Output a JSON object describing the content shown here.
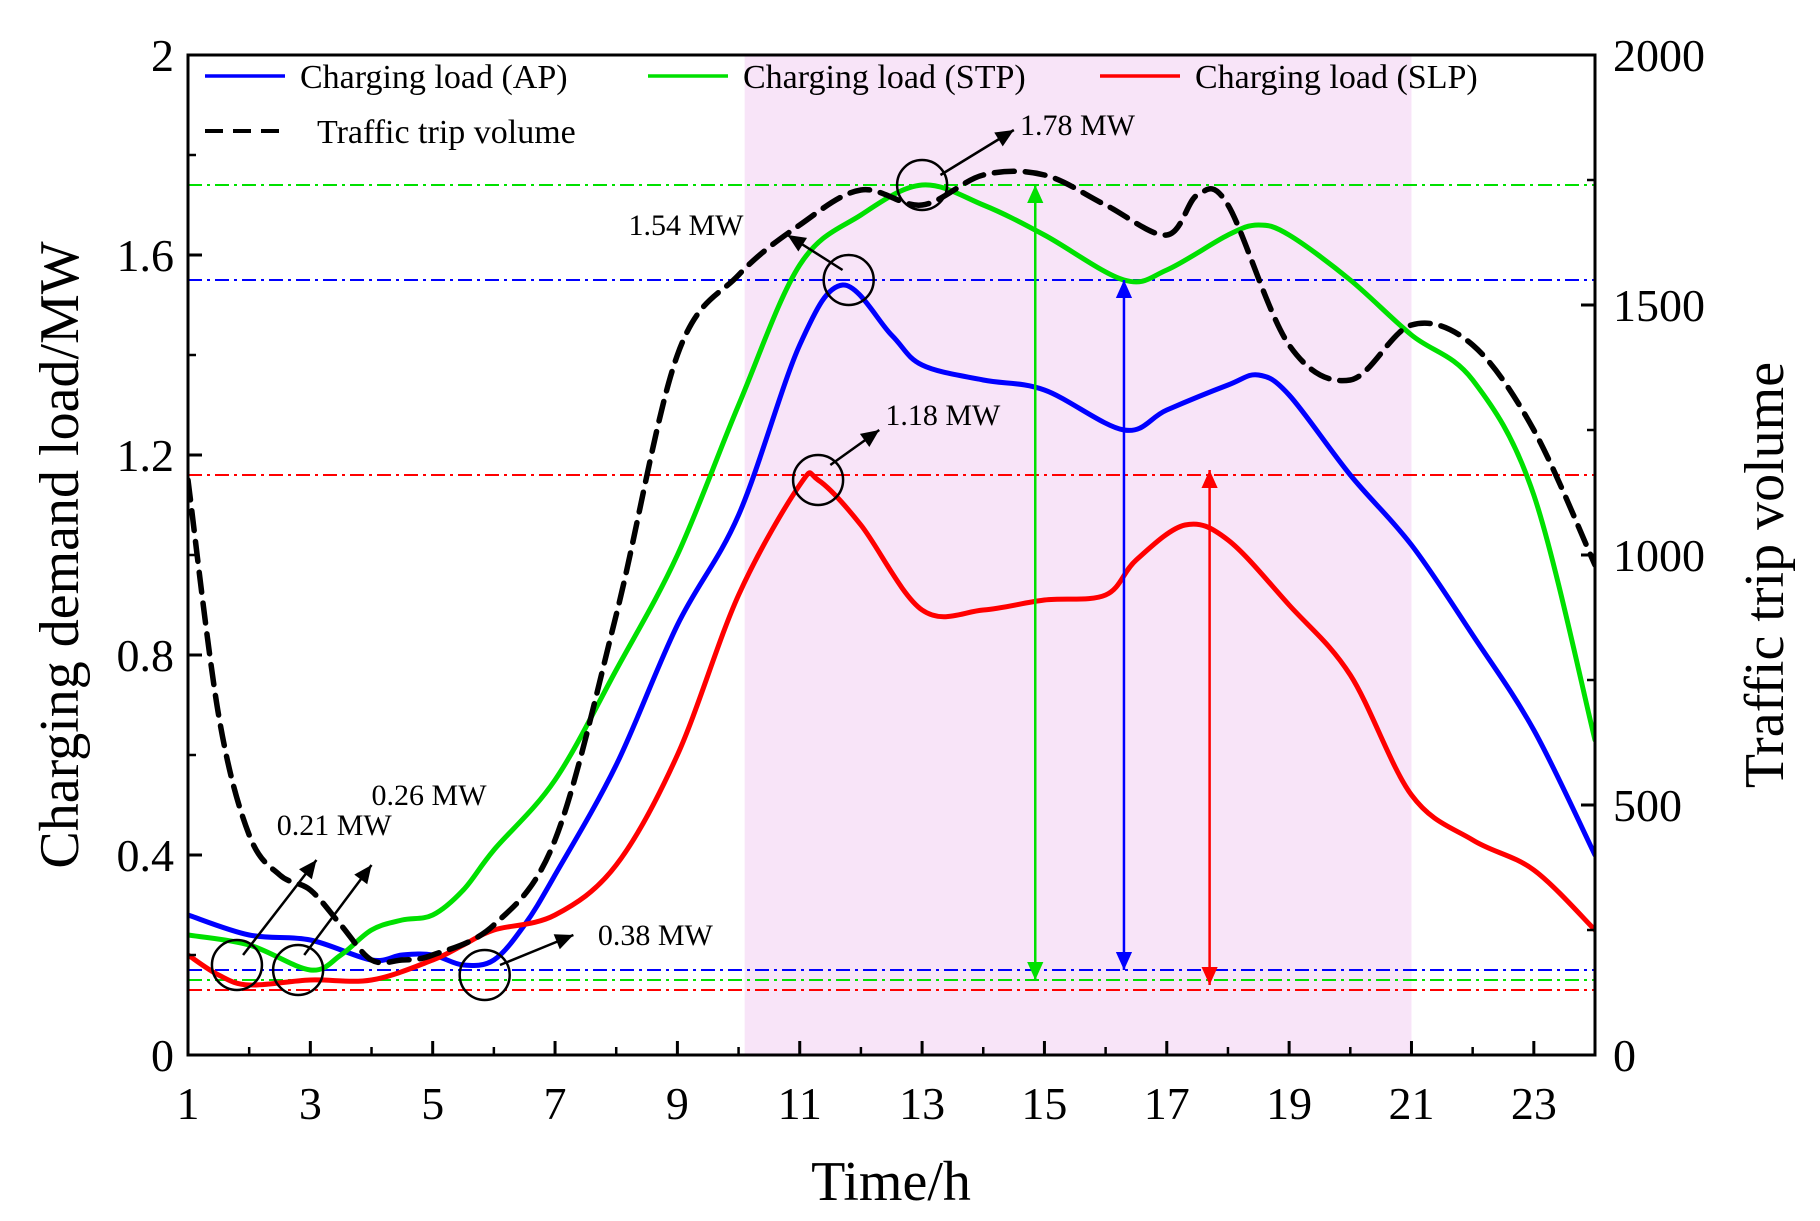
{
  "chart_data": {
    "type": "line",
    "xlabel": "Time/h",
    "ylabel_left": "Charging demand load/MW",
    "ylabel_right": "Traffic trip volume",
    "xlim": [
      1,
      24
    ],
    "ylim_left": [
      0,
      2
    ],
    "ylim_right": [
      0,
      2000
    ],
    "x_ticks": [
      1,
      3,
      5,
      7,
      9,
      11,
      13,
      15,
      17,
      19,
      21,
      23
    ],
    "y_ticks_left": [
      {
        "value": 0,
        "label": "0"
      },
      {
        "value": 0.4,
        "label": "0.4"
      },
      {
        "value": 0.8,
        "label": "0.8"
      },
      {
        "value": 1.2,
        "label": "1.2"
      },
      {
        "value": 1.6,
        "label": "1.6"
      },
      {
        "value": 2,
        "label": "2"
      }
    ],
    "y_ticks_right": [
      {
        "value": 0,
        "label": "0"
      },
      {
        "value": 500,
        "label": "500"
      },
      {
        "value": 1000,
        "label": "1000"
      },
      {
        "value": 1500,
        "label": "1500"
      },
      {
        "value": 2000,
        "label": "2000"
      }
    ],
    "shaded_region": {
      "x_start": 10.1,
      "x_end": 21,
      "color": "#f8e4f8"
    },
    "series": [
      {
        "name": "Charging load (AP)",
        "axis": "left",
        "color": "#0000ff",
        "style": "solid",
        "x": [
          1,
          2,
          3,
          4,
          4.5,
          5,
          5.5,
          6,
          6.5,
          7,
          8,
          9,
          10,
          11,
          11.7,
          12.5,
          13,
          14,
          15,
          16.3,
          17,
          18,
          18.5,
          19,
          20,
          21,
          22,
          23,
          24
        ],
        "y": [
          0.28,
          0.24,
          0.23,
          0.19,
          0.2,
          0.2,
          0.18,
          0.19,
          0.26,
          0.36,
          0.58,
          0.86,
          1.08,
          1.42,
          1.54,
          1.44,
          1.38,
          1.35,
          1.33,
          1.25,
          1.29,
          1.34,
          1.36,
          1.32,
          1.16,
          1.02,
          0.84,
          0.65,
          0.4
        ]
      },
      {
        "name": "Charging load (STP)",
        "axis": "left",
        "color": "#00e000",
        "style": "solid",
        "x": [
          1,
          2,
          3,
          3.5,
          4,
          4.5,
          5,
          5.5,
          6,
          7,
          8,
          9,
          10,
          11,
          12,
          13,
          14,
          15,
          16.3,
          17,
          18,
          18.5,
          19,
          20,
          21,
          22,
          23,
          24
        ],
        "y": [
          0.24,
          0.22,
          0.17,
          0.2,
          0.25,
          0.27,
          0.28,
          0.33,
          0.41,
          0.55,
          0.77,
          1.0,
          1.3,
          1.58,
          1.68,
          1.74,
          1.7,
          1.64,
          1.55,
          1.57,
          1.64,
          1.66,
          1.64,
          1.55,
          1.44,
          1.35,
          1.12,
          0.63
        ]
      },
      {
        "name": "Charging load (SLP)",
        "axis": "left",
        "color": "#ff0000",
        "style": "solid",
        "x": [
          1,
          1.5,
          2,
          3,
          4,
          5,
          5.5,
          6,
          7,
          8,
          9,
          10,
          11,
          11.3,
          12,
          13,
          14,
          15,
          16,
          16.5,
          17.3,
          18,
          19,
          20,
          21,
          22,
          23,
          24
        ],
        "y": [
          0.2,
          0.16,
          0.14,
          0.15,
          0.15,
          0.19,
          0.22,
          0.25,
          0.28,
          0.38,
          0.6,
          0.92,
          1.14,
          1.15,
          1.06,
          0.89,
          0.89,
          0.91,
          0.92,
          0.99,
          1.06,
          1.03,
          0.9,
          0.76,
          0.52,
          0.43,
          0.37,
          0.25
        ]
      },
      {
        "name": "Traffic trip volume",
        "axis": "right",
        "color": "#000000",
        "style": "dashed",
        "x": [
          1,
          1.5,
          2,
          2.5,
          3,
          3.5,
          4,
          4.5,
          5,
          6,
          7,
          8,
          9,
          10,
          11,
          12,
          13,
          14,
          15,
          16,
          17,
          17.5,
          18,
          19,
          20,
          21,
          22,
          23,
          24
        ],
        "y": [
          1150,
          680,
          440,
          360,
          330,
          260,
          190,
          190,
          200,
          260,
          430,
          880,
          1400,
          1560,
          1660,
          1730,
          1700,
          1760,
          1760,
          1700,
          1640,
          1720,
          1700,
          1420,
          1350,
          1460,
          1420,
          1250,
          980
        ]
      }
    ],
    "reference_lines": [
      {
        "axis": "left",
        "y": 1.74,
        "color": "#00e000"
      },
      {
        "axis": "left",
        "y": 1.55,
        "color": "#0000ff"
      },
      {
        "axis": "left",
        "y": 1.16,
        "color": "#ff0000"
      },
      {
        "axis": "left",
        "y": 0.17,
        "color": "#0000ff"
      },
      {
        "axis": "left",
        "y": 0.15,
        "color": "#00e000"
      },
      {
        "axis": "left",
        "y": 0.13,
        "color": "#ff0000"
      }
    ],
    "range_arrows": [
      {
        "x": 14.85,
        "y_from": 0.15,
        "y_to": 1.74,
        "color": "#00e000"
      },
      {
        "x": 16.3,
        "y_from": 0.17,
        "y_to": 1.55,
        "color": "#0000ff"
      },
      {
        "x": 17.7,
        "y_from": 0.14,
        "y_to": 1.17,
        "color": "#ff0000"
      }
    ],
    "markers": [
      {
        "x": 1.8,
        "y": 0.18
      },
      {
        "x": 2.8,
        "y": 0.17
      },
      {
        "x": 5.85,
        "y": 0.16
      },
      {
        "x": 11.3,
        "y": 1.15
      },
      {
        "x": 11.8,
        "y": 1.55
      },
      {
        "x": 13.0,
        "y": 1.74
      }
    ],
    "annotations": [
      {
        "text": "0.21 MW",
        "from": [
          1.9,
          0.2
        ],
        "to": [
          3.1,
          0.39
        ],
        "label_x": 2.45,
        "label_y": 0.44
      },
      {
        "text": "0.26 MW",
        "from": [
          2.9,
          0.2
        ],
        "to": [
          4.0,
          0.38
        ],
        "label_x": 4.0,
        "label_y": 0.5
      },
      {
        "text": "0.38 MW",
        "from": [
          6.1,
          0.18
        ],
        "to": [
          7.3,
          0.24
        ],
        "label_x": 7.7,
        "label_y": 0.22
      },
      {
        "text": "1.18 MW",
        "from": [
          11.5,
          1.18
        ],
        "to": [
          12.3,
          1.25
        ],
        "label_x": 12.4,
        "label_y": 1.26
      },
      {
        "text": "1.54 MW",
        "from": [
          11.7,
          1.57
        ],
        "to": [
          10.8,
          1.64
        ],
        "label_x": 8.2,
        "label_y": 1.64
      },
      {
        "text": "1.78 MW",
        "from": [
          13.3,
          1.76
        ],
        "to": [
          14.5,
          1.85
        ],
        "label_x": 14.6,
        "label_y": 1.84
      }
    ]
  }
}
